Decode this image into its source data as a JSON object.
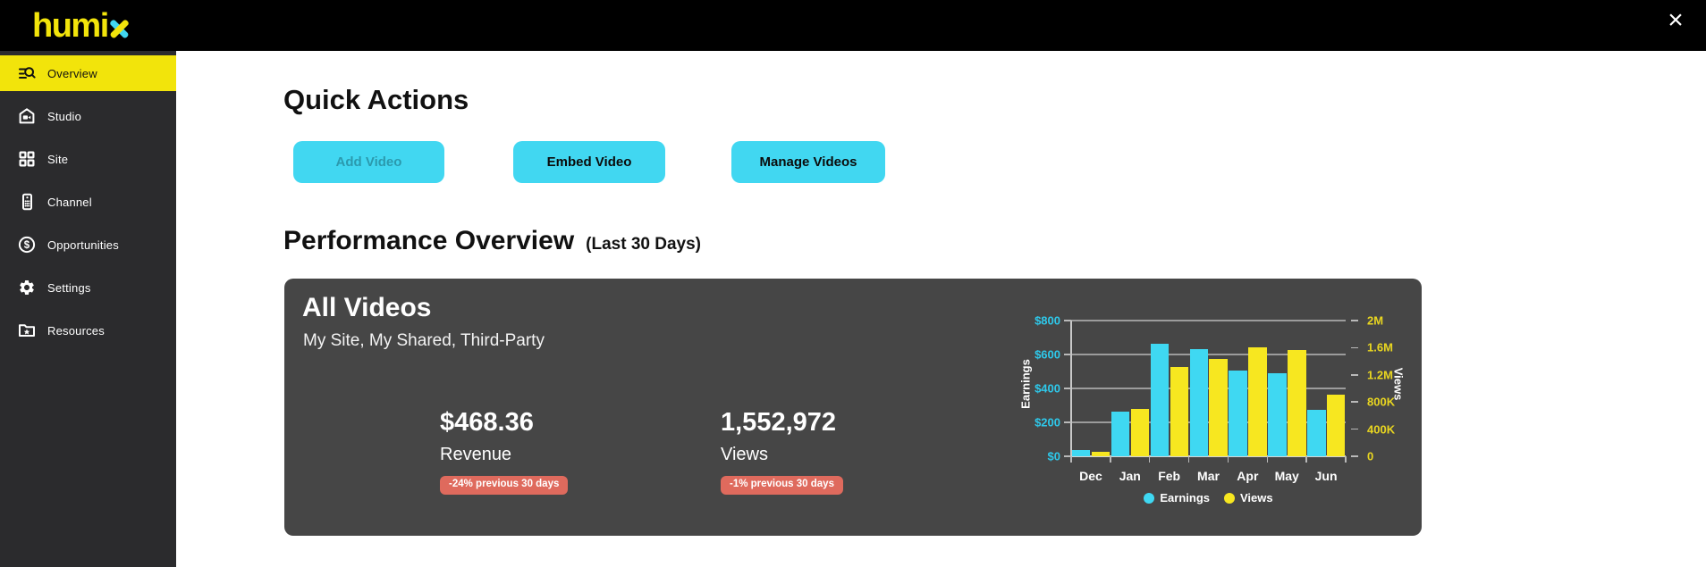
{
  "topbar": {
    "logo_primary": "humi",
    "logo_accent": "x",
    "close_glyph": "×"
  },
  "colors": {
    "accent_yellow": "#F2E40B",
    "accent_cyan": "#41D7F1",
    "badge_red": "#DF6A5D",
    "card_bg": "#464646",
    "sidebar_bg": "#2B2B2D",
    "topbar_bg": "#000000",
    "grid_line": "#9C9C9C",
    "axis_label_cyan": "#2EC8EA",
    "axis_label_yellow": "#E9D620"
  },
  "sidebar": {
    "items": [
      {
        "id": "overview",
        "label": "Overview",
        "icon": "overview-icon",
        "active": true
      },
      {
        "id": "studio",
        "label": "Studio",
        "icon": "studio-icon",
        "active": false
      },
      {
        "id": "site",
        "label": "Site",
        "icon": "site-icon",
        "active": false
      },
      {
        "id": "channel",
        "label": "Channel",
        "icon": "channel-icon",
        "active": false
      },
      {
        "id": "opportunities",
        "label": "Opportunities",
        "icon": "opportunities-icon",
        "active": false
      },
      {
        "id": "settings",
        "label": "Settings",
        "icon": "settings-icon",
        "active": false
      },
      {
        "id": "resources",
        "label": "Resources",
        "icon": "resources-icon",
        "active": false
      }
    ]
  },
  "quick_actions": {
    "title": "Quick Actions",
    "buttons": [
      {
        "id": "add-video",
        "label": "Add Video",
        "disabled": true
      },
      {
        "id": "embed-video",
        "label": "Embed Video",
        "disabled": false
      },
      {
        "id": "manage-videos",
        "label": "Manage Videos",
        "disabled": false
      }
    ]
  },
  "performance": {
    "title": "Performance Overview",
    "subtitle": "(Last 30 Days)"
  },
  "card": {
    "title": "All Videos",
    "subtitle": "My Site, My Shared, Third-Party",
    "stats": [
      {
        "id": "revenue",
        "value": "$468.36",
        "label": "Revenue",
        "badge": "-24% previous 30 days"
      },
      {
        "id": "views",
        "value": "1,552,972",
        "label": "Views",
        "badge": "-1% previous 30 days"
      }
    ]
  },
  "chart_data": {
    "type": "bar",
    "categories": [
      "Dec",
      "Jan",
      "Feb",
      "Mar",
      "Apr",
      "May",
      "Jun"
    ],
    "series": [
      {
        "name": "Earnings",
        "axis": "left",
        "color": "#3FD8F2",
        "values": [
          35,
          264,
          663,
          631,
          505,
          492,
          272
        ]
      },
      {
        "name": "Views",
        "axis": "right",
        "color": "#F7E720",
        "values": [
          65000,
          700000,
          1310000,
          1430000,
          1600000,
          1560000,
          910000
        ]
      }
    ],
    "left_axis": {
      "title": "Earnings",
      "min": 0,
      "max": 800,
      "ticks": [
        {
          "label": "$0",
          "value": 0
        },
        {
          "label": "$200",
          "value": 200
        },
        {
          "label": "$400",
          "value": 400
        },
        {
          "label": "$600",
          "value": 600
        },
        {
          "label": "$800",
          "value": 800
        }
      ]
    },
    "right_axis": {
      "title": "Views",
      "min": 0,
      "max": 2000000,
      "ticks": [
        {
          "label": "0",
          "value": 0
        },
        {
          "label": "400K",
          "value": 400000
        },
        {
          "label": "800K",
          "value": 800000
        },
        {
          "label": "1.2M",
          "value": 1200000
        },
        {
          "label": "1.6M",
          "value": 1600000
        },
        {
          "label": "2M",
          "value": 2000000
        }
      ]
    },
    "legend": {
      "position": "bottom",
      "items": [
        "Earnings",
        "Views"
      ]
    },
    "grid": true
  }
}
